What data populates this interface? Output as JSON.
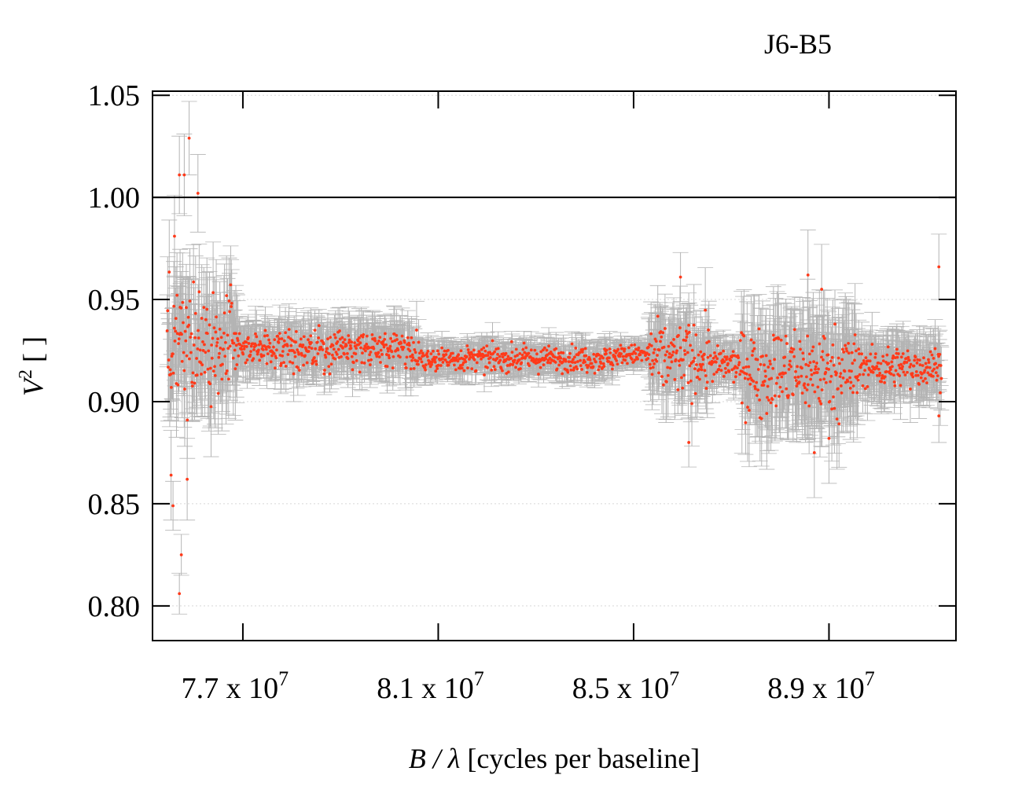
{
  "chart_data": {
    "type": "scatter",
    "title": "J6-B5",
    "xlabel_italic": "B / λ",
    "xlabel_rest": " [cycles per baseline]",
    "ylabel_italic": "V",
    "ylabel_sup": "2",
    "ylabel_rest": " [ ]",
    "xlim": [
      75150000,
      91600000
    ],
    "ylim": [
      0.783,
      1.052
    ],
    "x_ticks": [
      {
        "value": 77000000,
        "mant": "7.7 x 10",
        "exp": "7"
      },
      {
        "value": 81000000,
        "mant": "8.1 x 10",
        "exp": "7"
      },
      {
        "value": 85000000,
        "mant": "8.5 x 10",
        "exp": "7"
      },
      {
        "value": 89000000,
        "mant": "8.9 x 10",
        "exp": "7"
      }
    ],
    "y_ticks": [
      "0.80",
      "0.85",
      "0.90",
      "0.95",
      "1.00",
      "1.05"
    ],
    "reference_line": 1.0,
    "grid": "horizontal dotted",
    "point_color": "#ff3a1a",
    "errorbar_color": "#b4b4b4",
    "x_range": [
      75450000,
      91300000
    ],
    "segments": [
      {
        "x_start": 75450000,
        "x_end": 76900000,
        "center": 0.926,
        "scatter": 0.022,
        "err": 0.022
      },
      {
        "x_start": 76900000,
        "x_end": 80600000,
        "center": 0.926,
        "scatter": 0.0075,
        "err": 0.011
      },
      {
        "x_start": 80600000,
        "x_end": 84600000,
        "center": 0.921,
        "scatter": 0.005,
        "err": 0.007
      },
      {
        "x_start": 84600000,
        "x_end": 85300000,
        "center": 0.923,
        "scatter": 0.004,
        "err": 0.005
      },
      {
        "x_start": 85300000,
        "x_end": 86600000,
        "center": 0.921,
        "scatter": 0.014,
        "err": 0.016
      },
      {
        "x_start": 86600000,
        "x_end": 87200000,
        "center": 0.918,
        "scatter": 0.007,
        "err": 0.009
      },
      {
        "x_start": 87200000,
        "x_end": 89600000,
        "center": 0.915,
        "scatter": 0.017,
        "err": 0.022
      },
      {
        "x_start": 89600000,
        "x_end": 91300000,
        "center": 0.917,
        "scatter": 0.008,
        "err": 0.013
      }
    ],
    "notable_points": [
      {
        "x": 75900000,
        "y": 1.029,
        "err": 0.018
      },
      {
        "x": 75700000,
        "y": 1.011,
        "err": 0.019
      },
      {
        "x": 75800000,
        "y": 1.011,
        "err": 0.02
      },
      {
        "x": 76080000,
        "y": 1.002,
        "err": 0.019
      },
      {
        "x": 75600000,
        "y": 0.981,
        "err": 0.02
      },
      {
        "x": 75530000,
        "y": 0.864,
        "err": 0.022
      },
      {
        "x": 75570000,
        "y": 0.849,
        "err": 0.012
      },
      {
        "x": 75740000,
        "y": 0.825,
        "err": 0.01
      },
      {
        "x": 75700000,
        "y": 0.806,
        "err": 0.01
      },
      {
        "x": 75860000,
        "y": 0.862,
        "err": 0.02
      },
      {
        "x": 85960000,
        "y": 0.961,
        "err": 0.012
      },
      {
        "x": 86130000,
        "y": 0.88,
        "err": 0.012
      },
      {
        "x": 88850000,
        "y": 0.955,
        "err": 0.022
      },
      {
        "x": 88570000,
        "y": 0.962,
        "err": 0.022
      },
      {
        "x": 88700000,
        "y": 0.875,
        "err": 0.022
      },
      {
        "x": 89000000,
        "y": 0.882,
        "err": 0.022
      },
      {
        "x": 91250000,
        "y": 0.966,
        "err": 0.016
      },
      {
        "x": 91250000,
        "y": 0.893,
        "err": 0.013
      }
    ]
  }
}
